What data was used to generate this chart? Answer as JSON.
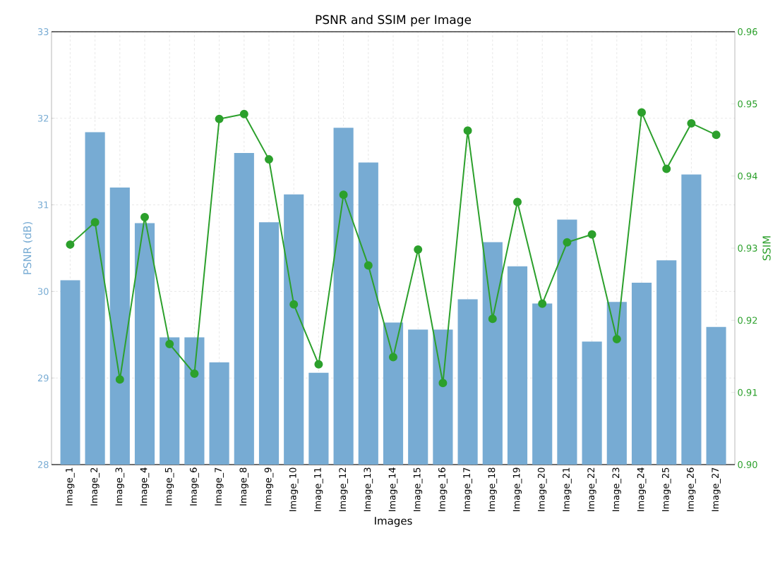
{
  "chart_data": {
    "type": "bar",
    "title": "PSNR and SSIM per Image",
    "xlabel": "Images",
    "ylabel": "PSNR (dB)",
    "y2label": "SSIM",
    "categories": [
      "Image_1",
      "Image_2",
      "Image_3",
      "Image_4",
      "Image_5",
      "Image_6",
      "Image_7",
      "Image_8",
      "Image_9",
      "Image_10",
      "Image_11",
      "Image_12",
      "Image_13",
      "Image_14",
      "Image_15",
      "Image_16",
      "Image_17",
      "Image_18",
      "Image_19",
      "Image_20",
      "Image_21",
      "Image_22",
      "Image_23",
      "Image_24",
      "Image_25",
      "Image_26",
      "Image_27"
    ],
    "series": [
      {
        "color": "#77abd3",
        "values": [
          30.13,
          31.84,
          31.2,
          30.79,
          29.47,
          29.47,
          29.18,
          31.6,
          30.8,
          31.12,
          29.06,
          31.89,
          31.49,
          29.64,
          29.56,
          29.56,
          29.91,
          30.57,
          30.29,
          29.86,
          30.83,
          29.42,
          29.88,
          30.1,
          30.36,
          31.35,
          29.59
        ]
      },
      {
        "type": "line",
        "axis": "y2",
        "color": "#2ca02c",
        "values": [
          0.9305,
          0.9336,
          0.9118,
          0.9343,
          0.9167,
          0.9126,
          0.9479,
          0.9486,
          0.9423,
          0.9222,
          0.9139,
          0.9374,
          0.9276,
          0.9149,
          0.9298,
          0.9113,
          0.9463,
          0.9202,
          0.9364,
          0.9223,
          0.9308,
          0.9319,
          0.9174,
          0.9488,
          0.941,
          0.9473,
          0.9457
        ]
      }
    ],
    "ylim": [
      28,
      33
    ],
    "yticks": [
      28,
      29,
      30,
      31,
      32,
      33
    ],
    "y2lim": [
      0.9,
      0.96
    ],
    "y2ticks": [
      {
        "value": 0.9,
        "label": "0.90"
      },
      0.91,
      0.92,
      0.93,
      0.94,
      0.95,
      {
        "value": 0.96,
        "label": "0.96"
      }
    ],
    "grid": true,
    "marker": "circle"
  }
}
